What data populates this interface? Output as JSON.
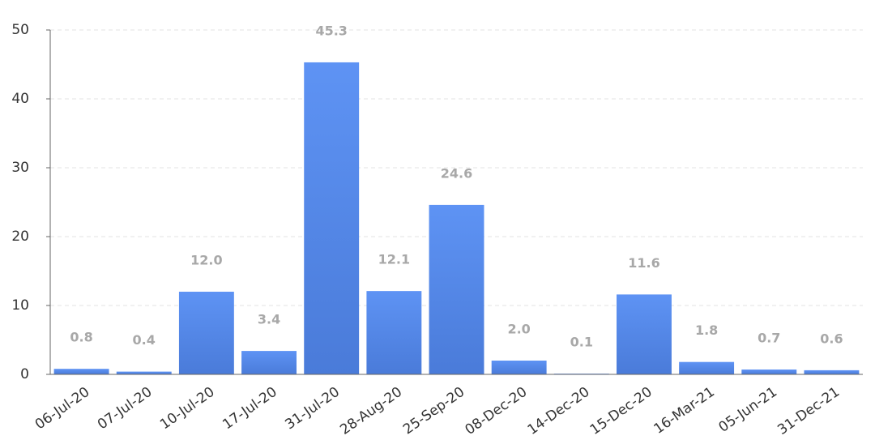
{
  "chart_data": {
    "type": "bar",
    "categories": [
      "06-Jul-20",
      "07-Jul-20",
      "10-Jul-20",
      "17-Jul-20",
      "31-Jul-20",
      "28-Aug-20",
      "25-Sep-20",
      "08-Dec-20",
      "14-Dec-20",
      "15-Dec-20",
      "16-Mar-21",
      "05-Jun-21",
      "31-Dec-21"
    ],
    "values": [
      0.8,
      0.4,
      12.0,
      3.4,
      45.3,
      12.1,
      24.6,
      2.0,
      0.1,
      11.6,
      1.8,
      0.7,
      0.6
    ],
    "value_labels": [
      "0.8",
      "0.4",
      "12.0",
      "3.4",
      "45.3",
      "12.1",
      "24.6",
      "2.0",
      "0.1",
      "11.6",
      "1.8",
      "0.7",
      "0.6"
    ],
    "color": "#5a8ef0",
    "ylim": [
      0,
      50
    ],
    "yticks": [
      0,
      10,
      20,
      30,
      40,
      50
    ],
    "grid": true
  }
}
